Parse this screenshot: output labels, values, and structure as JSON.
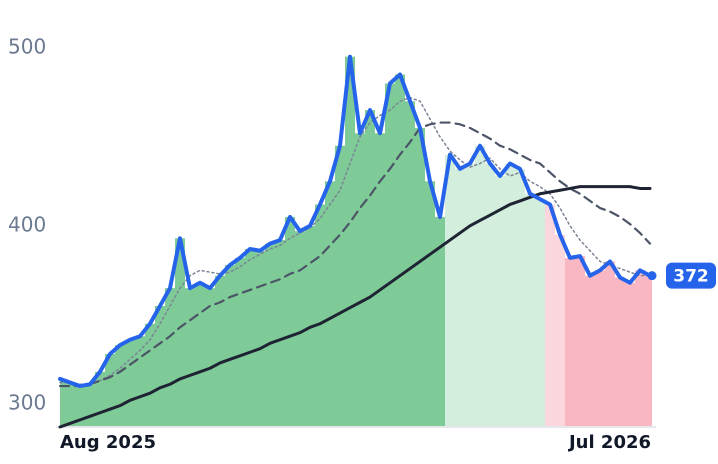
{
  "chart_data": {
    "type": "line",
    "categories": [
      "Aug 2025",
      null,
      null,
      null,
      null,
      null,
      null,
      null,
      null,
      null,
      null,
      null,
      null,
      null,
      null,
      null,
      null,
      null,
      null,
      null,
      null,
      null,
      null,
      null,
      null,
      null,
      null,
      null,
      null,
      null,
      null,
      null,
      null,
      null,
      null,
      null,
      null,
      null,
      null,
      null,
      null,
      null,
      null,
      null,
      null,
      null,
      null,
      null,
      null,
      null,
      null,
      null,
      null,
      null,
      null,
      "Jul 2026",
      null,
      null,
      null,
      null
    ],
    "ylim": [
      287,
      510
    ],
    "yticks": [
      300,
      400,
      500
    ],
    "grid": false,
    "area_colors": [
      "#7fcb98",
      "#7fcb98",
      "#7fcb98",
      "#7fcb98",
      "#7fcb98",
      "#7fcb98",
      "#7fcb98",
      "#7fcb98",
      "#7fcb98",
      "#7fcb98",
      "#7fcb98",
      "#7fcb98",
      "#7fcb98",
      "#7fcb98",
      "#7fcb98",
      "#7fcb98",
      "#7fcb98",
      "#7fcb98",
      "#7fcb98",
      "#7fcb98",
      "#7fcb98",
      "#7fcb98",
      "#7fcb98",
      "#7fcb98",
      "#7fcb98",
      "#7fcb98",
      "#7fcb98",
      "#7fcb98",
      "#7fcb98",
      "#7fcb98",
      "#7fcb98",
      "#7fcb98",
      "#7fcb98",
      "#7fcb98",
      "#7fcb98",
      "#7fcb98",
      "#7fcb98",
      "#7fcb98",
      "#7fcb98",
      "#d3eedc",
      "#d3eedc",
      "#d3eedc",
      "#d3eedc",
      "#d3eedc",
      "#d3eedc",
      "#d3eedc",
      "#d3eedc",
      "#d3eedc",
      "#d3eedc",
      "#fbd6dd",
      "#fbd6dd",
      "#f9b6c3",
      "#f9b6c3",
      "#f9b6c3",
      "#f9b6c3",
      "#f9b6c3",
      "#f9b6c3",
      "#f9b6c3",
      "#f9b6c3",
      "#f9b6c3"
    ],
    "series": [
      {
        "color": "#2563eb",
        "width": 4,
        "dash": "none",
        "values": [
          314,
          312,
          310,
          311,
          318,
          328,
          333,
          336,
          338,
          345,
          355,
          365,
          393,
          365,
          368,
          365,
          372,
          378,
          382,
          387,
          386,
          390,
          392,
          405,
          397,
          400,
          412,
          425,
          445,
          495,
          452,
          465,
          452,
          480,
          485,
          470,
          455,
          425,
          405,
          440,
          432,
          435,
          445,
          435,
          428,
          435,
          432,
          418,
          415,
          412,
          395,
          382,
          383,
          372,
          375,
          380,
          371,
          368,
          375,
          372
        ]
      },
      {
        "color": "#1e2433",
        "width": 3,
        "dash": "none",
        "values": [
          287,
          289,
          291,
          293,
          295,
          297,
          299,
          302,
          304,
          306,
          309,
          311,
          314,
          316,
          318,
          320,
          323,
          325,
          327,
          329,
          331,
          334,
          336,
          338,
          340,
          343,
          345,
          348,
          351,
          354,
          357,
          360,
          364,
          368,
          372,
          376,
          380,
          384,
          388,
          392,
          396,
          400,
          403,
          406,
          409,
          412,
          414,
          416,
          418,
          419,
          420,
          421,
          422,
          422,
          422,
          422,
          422,
          422,
          421,
          421
        ]
      },
      {
        "color": "#4b5567",
        "width": 2.2,
        "dash": "9 6",
        "values": [
          310,
          310,
          310,
          311,
          313,
          315,
          318,
          322,
          326,
          330,
          334,
          338,
          343,
          347,
          351,
          355,
          357,
          360,
          362,
          364,
          366,
          368,
          370,
          373,
          375,
          379,
          383,
          389,
          395,
          402,
          410,
          417,
          425,
          432,
          440,
          447,
          455,
          457,
          458,
          458,
          457,
          455,
          452,
          449,
          445,
          443,
          440,
          437,
          435,
          430,
          425,
          421,
          418,
          414,
          410,
          408,
          405,
          401,
          396,
          390
        ]
      },
      {
        "color": "#7b8494",
        "width": 1.5,
        "dash": "2 3",
        "values": [
          312,
          312,
          311,
          311,
          313,
          316,
          320,
          325,
          330,
          336,
          345,
          355,
          365,
          372,
          375,
          374,
          373,
          374,
          377,
          381,
          384,
          387,
          389,
          393,
          396,
          399,
          404,
          412,
          420,
          435,
          450,
          458,
          462,
          465,
          470,
          472,
          470,
          460,
          450,
          442,
          437,
          433,
          435,
          438,
          432,
          428,
          430,
          425,
          422,
          418,
          410,
          400,
          392,
          386,
          380,
          378,
          376,
          374,
          372,
          372
        ]
      }
    ]
  }
}
